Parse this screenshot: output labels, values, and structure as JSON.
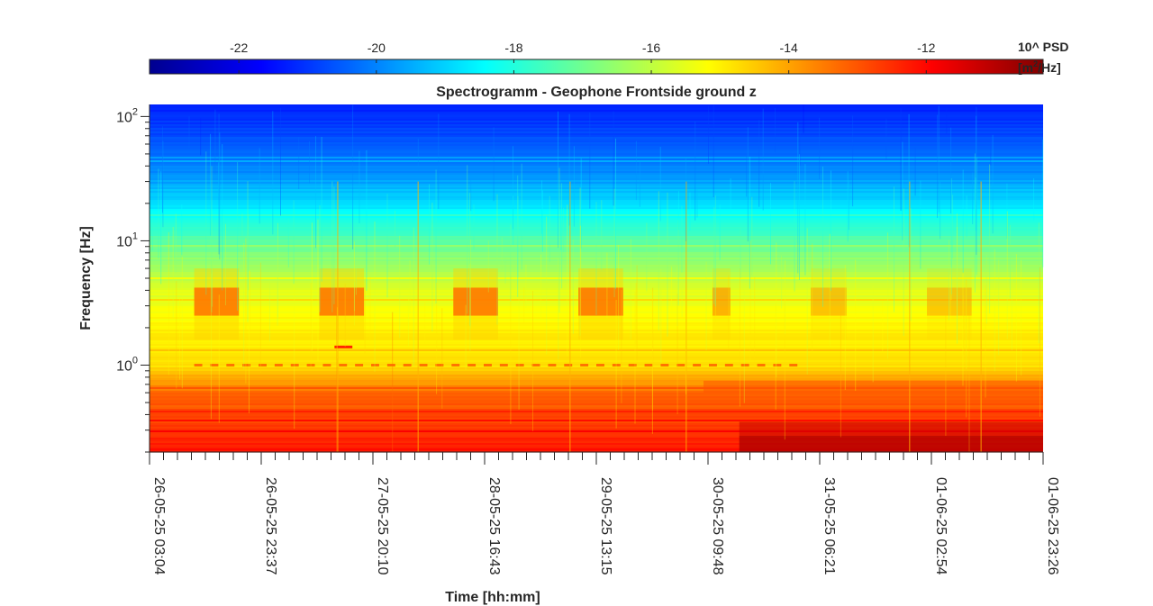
{
  "chart_data": {
    "type": "heatmap",
    "title": "Spectrogramm - Geophone Frontside ground z",
    "xlabel": "Time [hh:mm]",
    "ylabel": "Frequency [Hz]",
    "y_scale": "log",
    "ylim": [
      0.2,
      125
    ],
    "y_ticks": [
      {
        "value": 1,
        "base": "10",
        "exp": "0"
      },
      {
        "value": 10,
        "base": "10",
        "exp": "1"
      },
      {
        "value": 100,
        "base": "10",
        "exp": "2"
      }
    ],
    "x_ticks": [
      "26-05-25 03:04",
      "26-05-25 23:37",
      "27-05-25 20:10",
      "28-05-25 16:43",
      "29-05-25 13:15",
      "30-05-25 09:48",
      "31-05-25 06:21",
      "01-06-25 02:54",
      "01-06-25 23:26"
    ],
    "colorbar": {
      "label_line1": "10^ PSD",
      "label_line2_prefix": "[m",
      "label_line2_sup": "2",
      "label_line2_suffix": "/Hz]",
      "ticks": [
        -22,
        -20,
        -18,
        -16,
        -14,
        -12
      ],
      "range": [
        -23.3,
        -10.3
      ],
      "colormap": "jet"
    },
    "levels_log10_psd": [
      {
        "freq_hz": 125,
        "value": -21.3
      },
      {
        "freq_hz": 60,
        "value": -20.6
      },
      {
        "freq_hz": 30,
        "value": -19.6
      },
      {
        "freq_hz": 15,
        "value": -18.2
      },
      {
        "freq_hz": 8,
        "value": -16.8
      },
      {
        "freq_hz": 4,
        "value": -15.6
      },
      {
        "freq_hz": 2,
        "value": -15.0
      },
      {
        "freq_hz": 1,
        "value": -14.8
      },
      {
        "freq_hz": 0.6,
        "value": -13.3
      },
      {
        "freq_hz": 0.2,
        "value": -12.1
      }
    ],
    "daytime_activity_band_hz": [
      2.5,
      4.2
    ],
    "grid": false
  }
}
